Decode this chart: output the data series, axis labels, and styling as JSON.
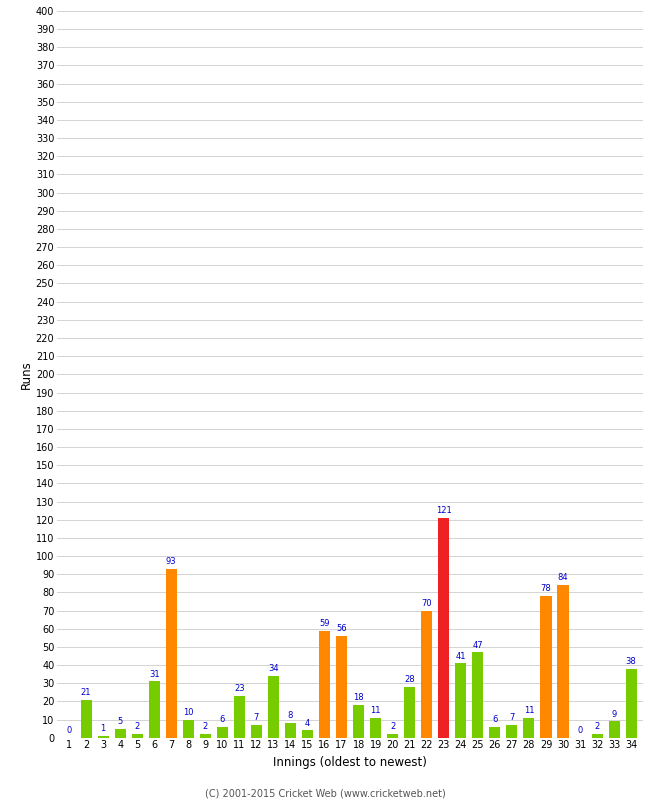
{
  "xlabel": "Innings (oldest to newest)",
  "ylabel": "Runs",
  "innings": [
    1,
    2,
    3,
    4,
    5,
    6,
    7,
    8,
    9,
    10,
    11,
    12,
    13,
    14,
    15,
    16,
    17,
    18,
    19,
    20,
    21,
    22,
    23,
    24,
    25,
    26,
    27,
    28,
    29,
    30,
    31,
    32,
    33,
    34
  ],
  "values": [
    0,
    21,
    1,
    5,
    2,
    31,
    93,
    10,
    2,
    6,
    23,
    7,
    34,
    8,
    4,
    59,
    56,
    18,
    11,
    2,
    28,
    70,
    121,
    41,
    47,
    6,
    7,
    11,
    78,
    84,
    0,
    2,
    9,
    38
  ],
  "colors": [
    "#77cc00",
    "#77cc00",
    "#77cc00",
    "#77cc00",
    "#77cc00",
    "#77cc00",
    "#ff8800",
    "#77cc00",
    "#77cc00",
    "#77cc00",
    "#77cc00",
    "#77cc00",
    "#77cc00",
    "#77cc00",
    "#77cc00",
    "#ff8800",
    "#ff8800",
    "#77cc00",
    "#77cc00",
    "#77cc00",
    "#77cc00",
    "#ff8800",
    "#ee2222",
    "#77cc00",
    "#77cc00",
    "#77cc00",
    "#77cc00",
    "#77cc00",
    "#ff8800",
    "#ff8800",
    "#77cc00",
    "#77cc00",
    "#77cc00",
    "#77cc00"
  ],
  "ylim": [
    0,
    400
  ],
  "yticks": [
    0,
    10,
    20,
    30,
    40,
    50,
    60,
    70,
    80,
    90,
    100,
    110,
    120,
    130,
    140,
    150,
    160,
    170,
    180,
    190,
    200,
    210,
    220,
    230,
    240,
    250,
    260,
    270,
    280,
    290,
    300,
    310,
    320,
    330,
    340,
    350,
    360,
    370,
    380,
    390,
    400
  ],
  "background_color": "#ffffff",
  "grid_color": "#cccccc",
  "label_color": "#0000cc",
  "footer": "(C) 2001-2015 Cricket Web (www.cricketweb.net)",
  "fig_width": 6.5,
  "fig_height": 8.0,
  "dpi": 100
}
